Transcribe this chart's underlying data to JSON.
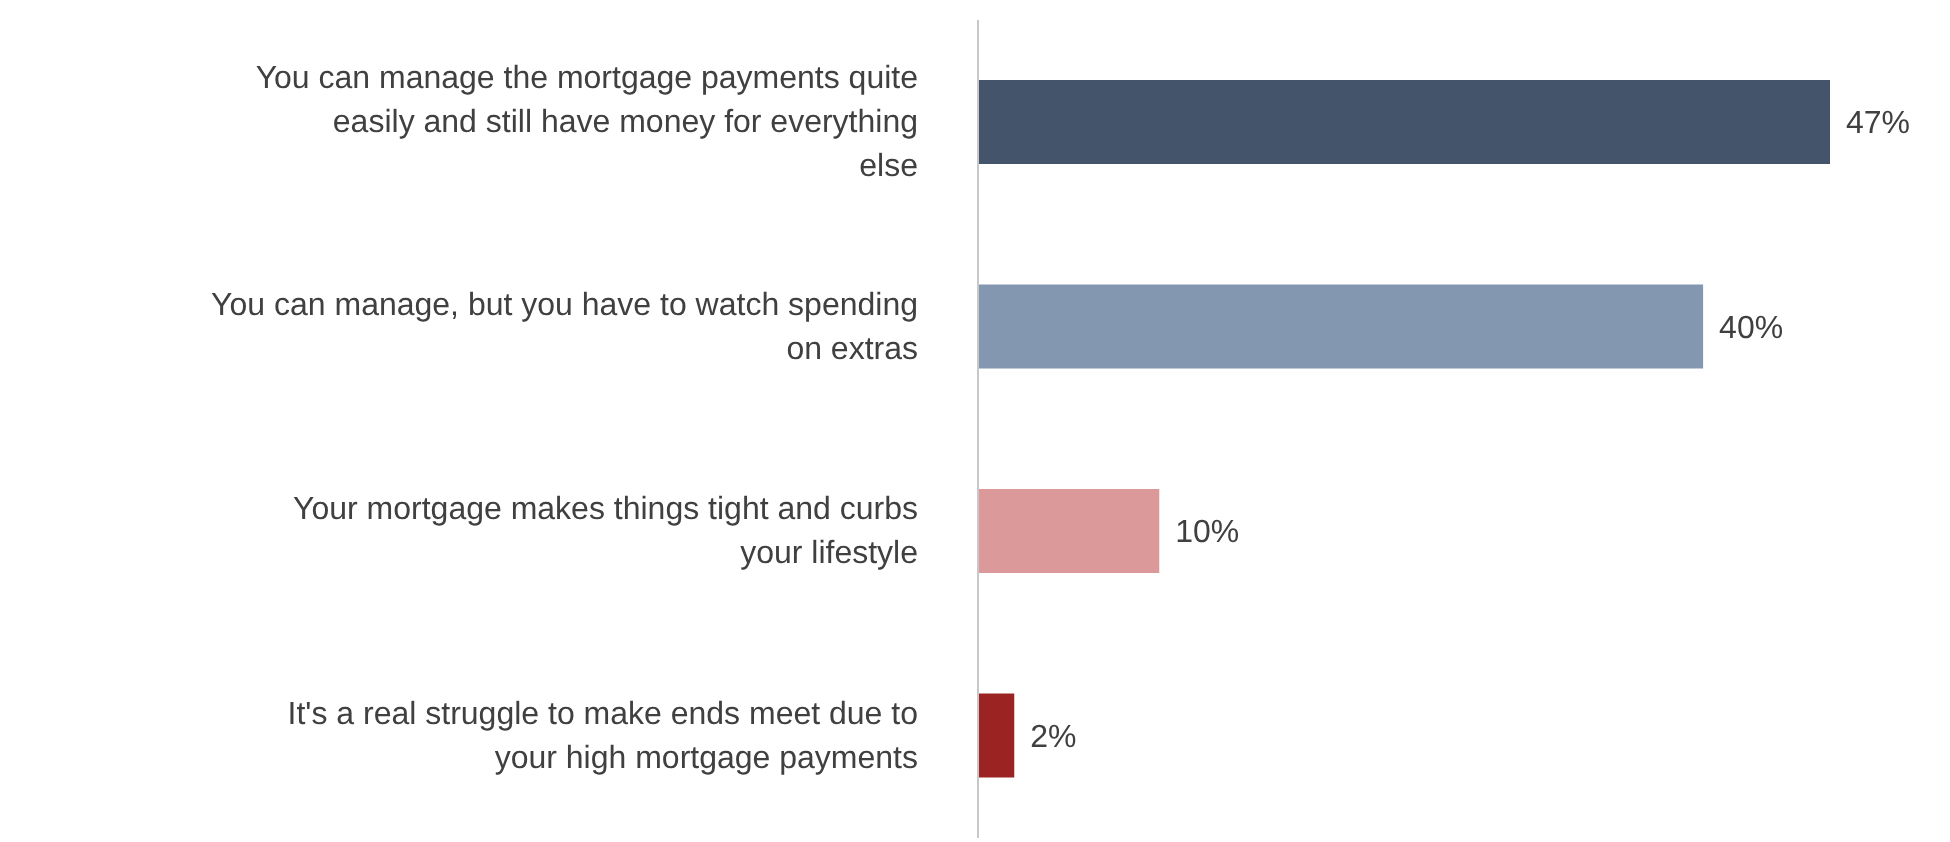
{
  "chart_data": {
    "type": "bar",
    "orientation": "horizontal",
    "tick_labels": "y",
    "categories": [
      "You can manage the mortgage payments quite easily and still have money for everything else",
      "You can manage, but you have to watch spending on extras",
      "Your mortgage makes things tight and curbs your lifestyle",
      "It's a real struggle to make ends meet due to your high mortgage payments"
    ],
    "values": [
      47,
      40,
      10,
      2
    ],
    "value_labels": [
      "47%",
      "40%",
      "10%",
      "2%"
    ],
    "colors": [
      "#44546a",
      "#8497b0",
      "#dc9999",
      "#9b2423"
    ],
    "grid": false,
    "legend": false
  }
}
